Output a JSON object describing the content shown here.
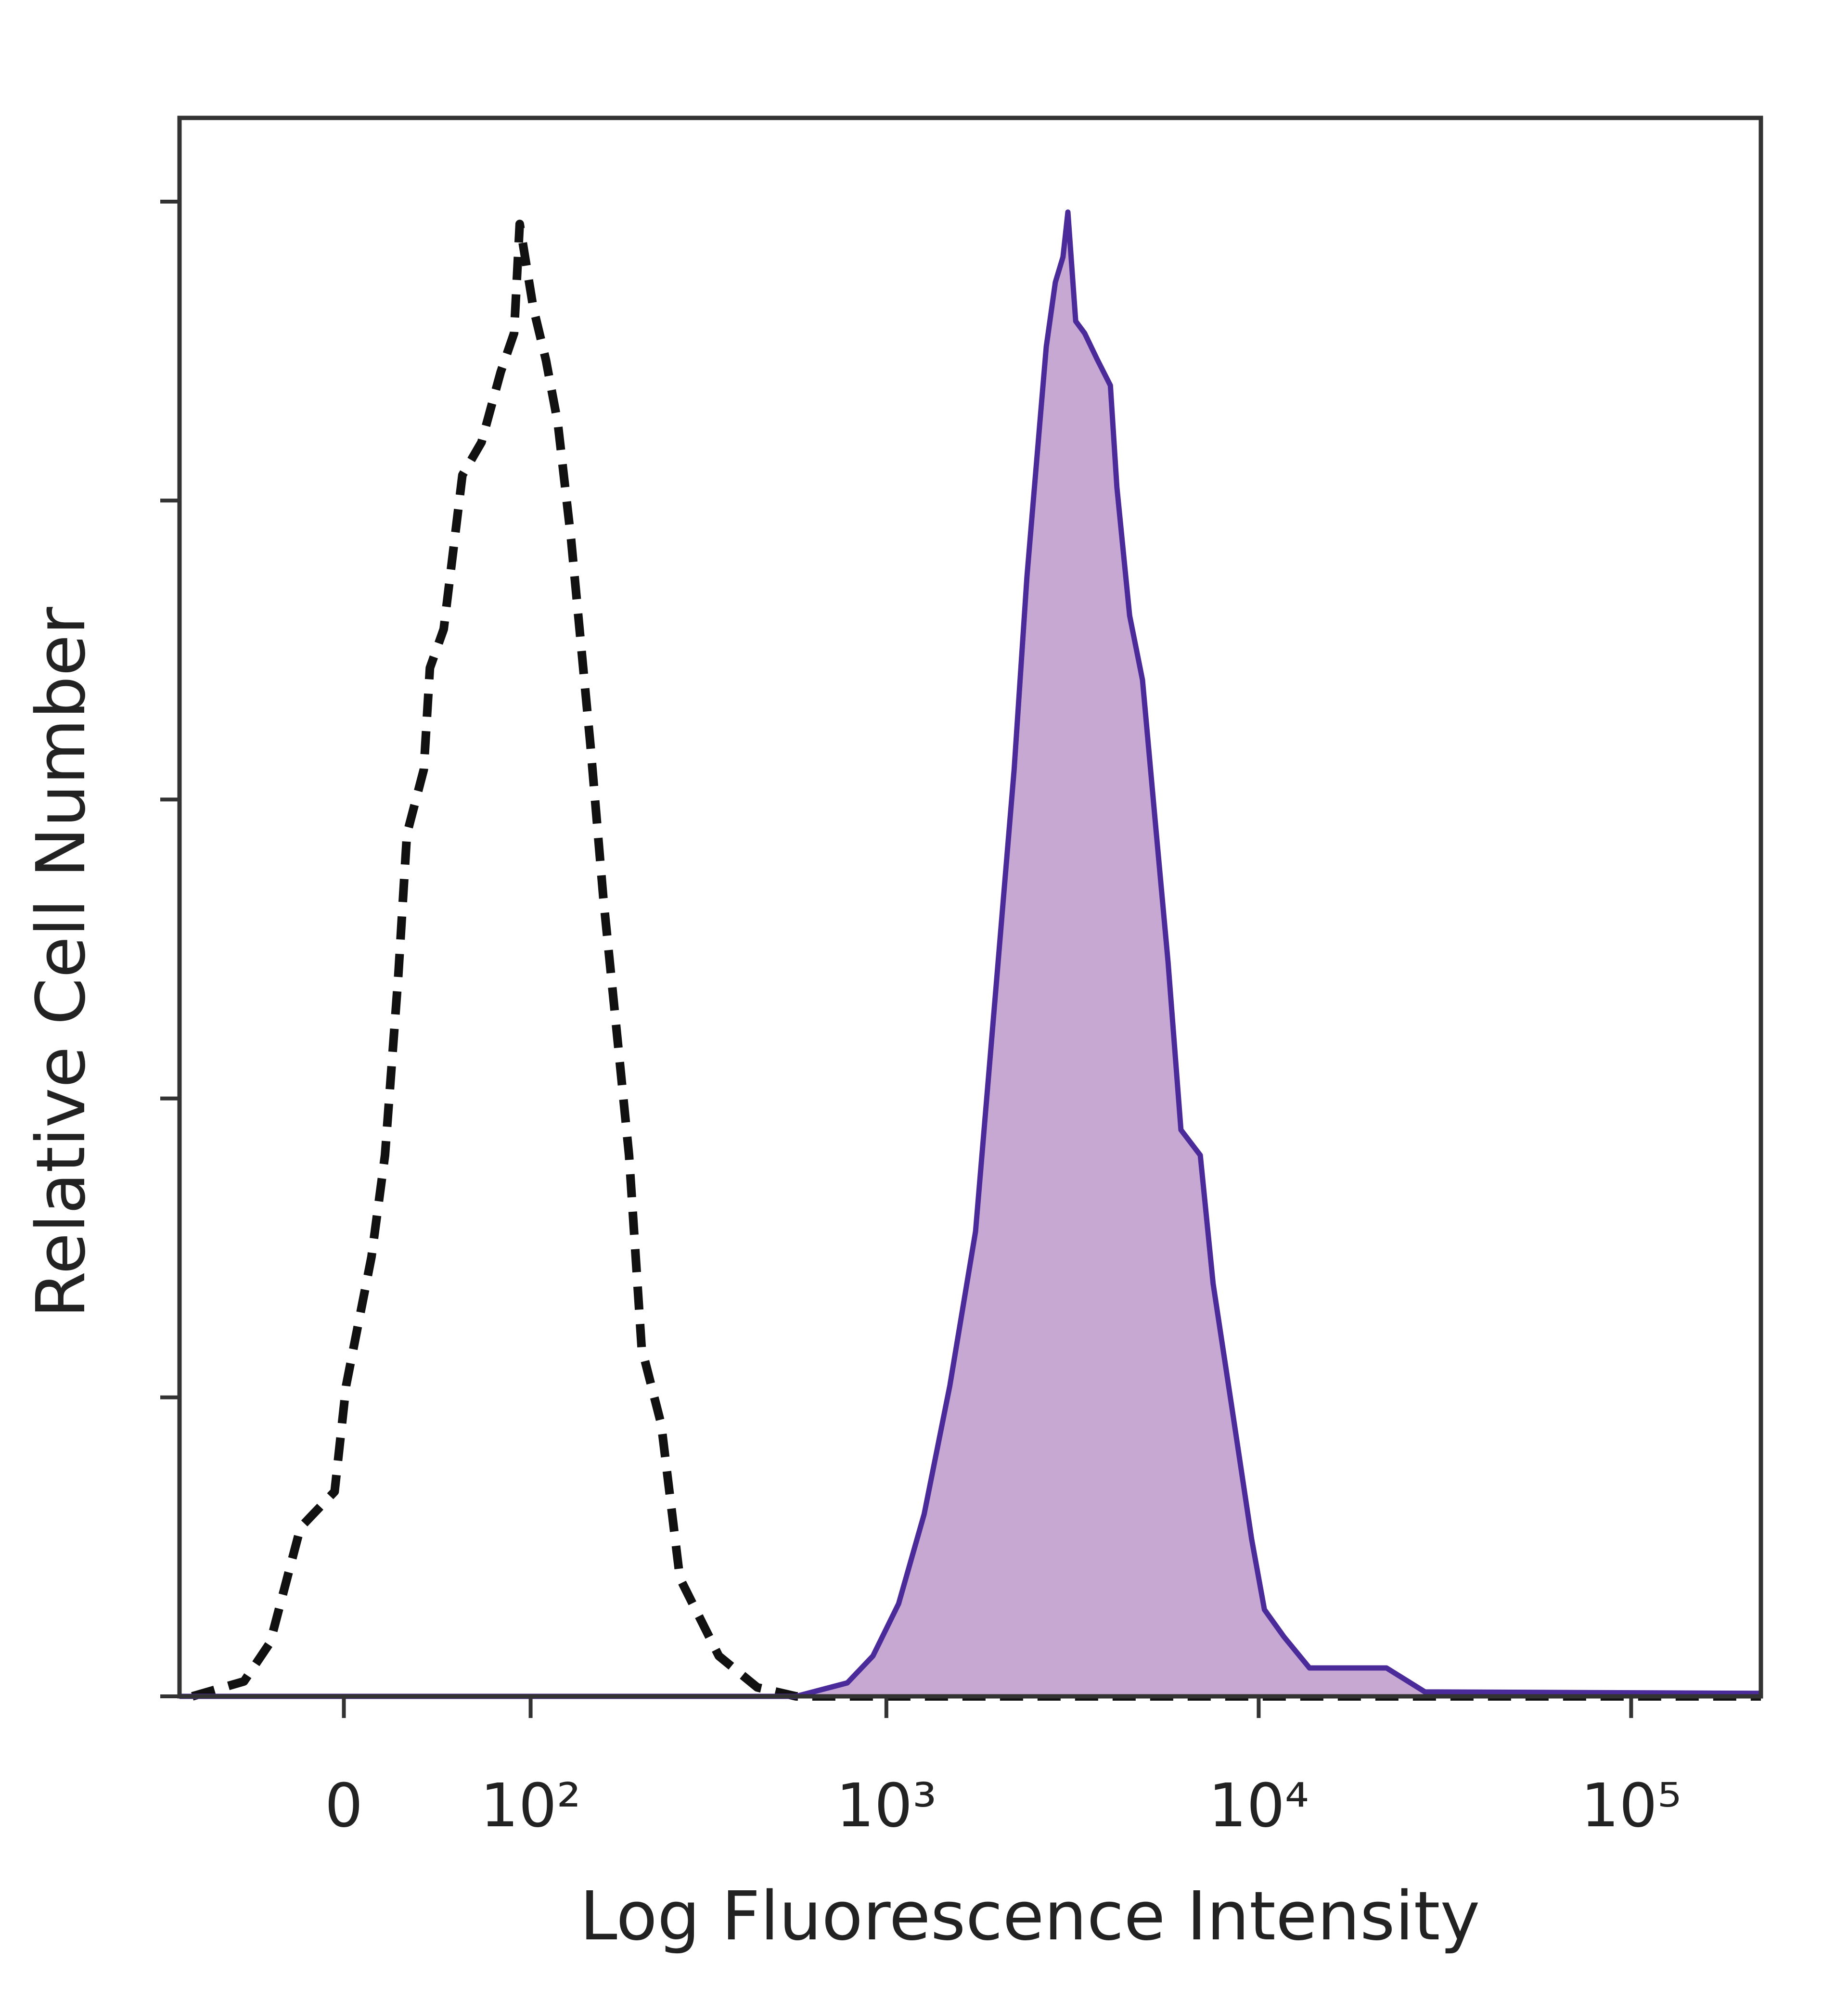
{
  "chart_data": {
    "type": "line",
    "xlabel": "Log Fluorescence Intensity",
    "ylabel": "Relative Cell Number",
    "xscale": "biexponential",
    "xlim": [
      -84,
      223000
    ],
    "ylim": [
      0,
      105.6
    ],
    "xticks": [
      0,
      {
        "value": 100,
        "label": "10²"
      },
      {
        "value": 1000,
        "label": "10³"
      },
      {
        "value": 10000,
        "label": "10⁴"
      },
      {
        "value": 100000,
        "label": "10⁵"
      }
    ],
    "yticks": [
      0,
      20,
      40,
      60,
      80,
      100
    ],
    "series": [
      {
        "color": "#111111",
        "style": "dashed",
        "x": [
          -75.6,
          -46,
          -33,
          -19,
          -4,
          1,
          12,
          18,
          24,
          28,
          36,
          39,
          46,
          56,
          67,
          79,
          88,
          92,
          102,
          112,
          122,
          134,
          153,
          167,
          182,
          198,
          215,
          244,
          275,
          352,
          448,
          571,
          223000
        ],
        "values": [
          0,
          1.0,
          3.6,
          11.3,
          13.7,
          20.8,
          29.4,
          36.2,
          48.2,
          57.7,
          62.0,
          68.8,
          71.4,
          81.7,
          83.9,
          88.6,
          91.2,
          98.5,
          92.9,
          89.4,
          85.2,
          77.4,
          63.7,
          53.4,
          44.8,
          36.2,
          23.3,
          18.2,
          7.9,
          2.7,
          0.6,
          0,
          0
        ]
      },
      {
        "color": "#4b2a9a",
        "fill": "#c7a8d3",
        "style": "solid",
        "x": [
          -84,
          571,
          785,
          920,
          1079,
          1264,
          1482,
          1737,
          1957,
          2205,
          2387,
          2585,
          2690,
          2845,
          2983,
          3075,
          3226,
          3409,
          3693,
          3999,
          4162,
          4504,
          4876,
          5278,
          5712,
          6184,
          6970,
          7546,
          8500,
          9577,
          10363,
          11680,
          13690,
          22036,
          27940,
          223000
        ],
        "values": [
          0,
          0,
          0.9,
          2.7,
          6.2,
          12.2,
          20.8,
          31.1,
          46.5,
          62.0,
          74.9,
          85.2,
          90.3,
          94.6,
          96.3,
          99.3,
          92.0,
          91.2,
          89.4,
          87.7,
          80.9,
          72.3,
          68.0,
          58.5,
          49.1,
          37.9,
          36.2,
          27.6,
          19.1,
          10.5,
          5.8,
          4.0,
          1.9,
          1.9,
          0.3,
          0.2
        ]
      }
    ]
  }
}
